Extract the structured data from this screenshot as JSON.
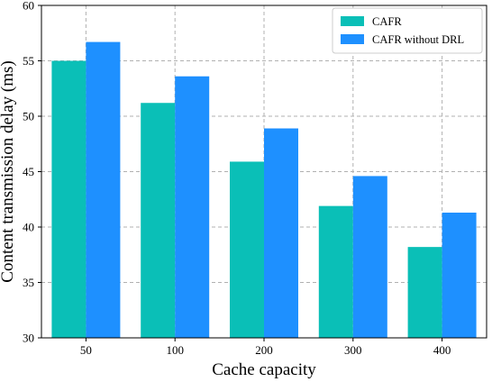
{
  "chart_data": {
    "type": "bar",
    "categories": [
      "50",
      "100",
      "200",
      "300",
      "400"
    ],
    "series": [
      {
        "name": "CAFR",
        "values": [
          55.0,
          51.2,
          45.9,
          41.9,
          38.2
        ],
        "color": "#0ABFB7"
      },
      {
        "name": "CAFR without DRL",
        "values": [
          56.7,
          53.6,
          48.9,
          44.6,
          41.3
        ],
        "color": "#1E90FF"
      }
    ],
    "title": "",
    "xlabel": "Cache capacity",
    "ylabel": "Content transmission delay (ms)",
    "ylim": [
      30,
      60
    ],
    "yticks": [
      "30",
      "35",
      "40",
      "45",
      "50",
      "55",
      "60"
    ],
    "grid": true,
    "legend_position": "top-right"
  }
}
